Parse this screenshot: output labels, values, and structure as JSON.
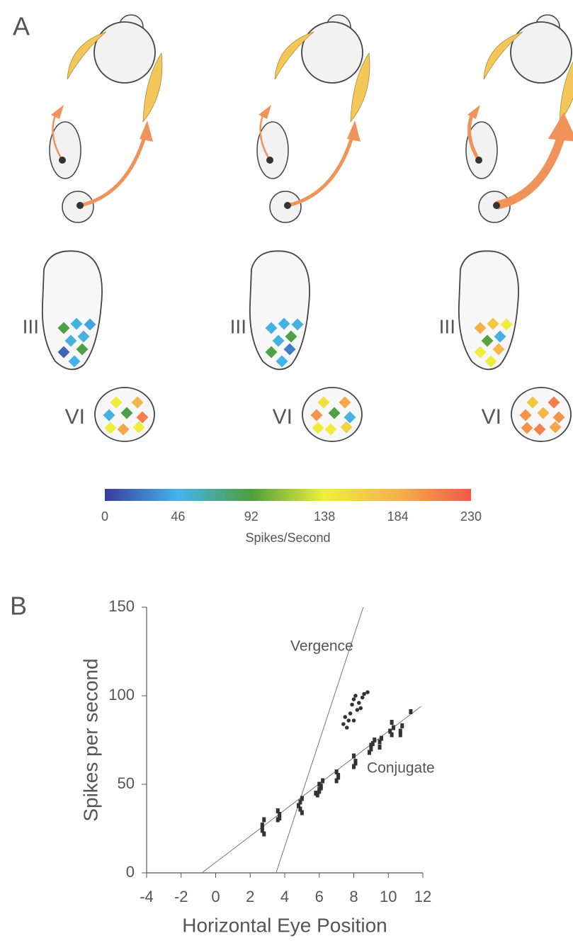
{
  "panel_labels": [
    "A",
    "B"
  ],
  "diagram": {
    "columns": [
      {
        "upper_nucleus": {
          "label": "III",
          "values": [
            90,
            50,
            40,
            50,
            50,
            15,
            90,
            45
          ]
        },
        "lower_nucleus": {
          "label": "VI",
          "values": [
            140,
            180,
            50,
            90,
            210,
            140,
            190,
            140
          ]
        }
      },
      {
        "upper_nucleus": {
          "label": "III",
          "values": [
            50,
            50,
            50,
            50,
            90,
            90,
            25,
            45
          ]
        },
        "lower_nucleus": {
          "label": "VI",
          "values": [
            150,
            190,
            200,
            90,
            50,
            140,
            140,
            160
          ]
        }
      },
      {
        "upper_nucleus": {
          "label": "III",
          "values": [
            185,
            170,
            140,
            95,
            50,
            140,
            180,
            140
          ]
        },
        "lower_nucleus": {
          "label": "VI",
          "values": [
            170,
            210,
            200,
            180,
            200,
            200,
            210,
            190
          ]
        }
      }
    ],
    "colorbar": {
      "label": "Spikes/Second",
      "lim": [
        0,
        230
      ],
      "ticks": [
        0,
        46,
        92,
        138,
        184,
        230
      ],
      "colors": [
        "#3a3c9c",
        "#45b3ee",
        "#4f9e3e",
        "#eef03a",
        "#f5b24a",
        "#f2584a"
      ]
    }
  },
  "chart_data": {
    "type": "scatter",
    "xlabel": "Horizontal Eye Position",
    "ylabel": "Spikes per second",
    "xlim": [
      -4,
      12
    ],
    "ylim": [
      0,
      150
    ],
    "xticks": [
      -4,
      -2,
      0,
      2,
      4,
      6,
      8,
      10,
      12
    ],
    "yticks": [
      0,
      50,
      100,
      150
    ],
    "series": [
      {
        "name": "Vergence",
        "color": "#333333",
        "marker": "circle",
        "x": [
          7.4,
          7.5,
          7.6,
          7.7,
          7.8,
          7.9,
          8.0,
          8.0,
          8.1,
          8.2,
          8.3,
          8.4,
          8.5,
          8.6,
          8.8
        ],
        "values": [
          84,
          88,
          82,
          86,
          90,
          95,
          98,
          86,
          100,
          92,
          96,
          93,
          99,
          101,
          102
        ]
      },
      {
        "name": "Conjugate",
        "color": "#333333",
        "marker": "square",
        "x": [
          2.7,
          2.7,
          2.8,
          2.7,
          2.8,
          3.6,
          3.7,
          3.6,
          3.7,
          4.9,
          4.9,
          5.0,
          4.8,
          5.0,
          5.9,
          6.0,
          6.1,
          6.0,
          6.2,
          5.8,
          6.0,
          6.1,
          7.0,
          7.1,
          7.0,
          7.1,
          8.0,
          8.1,
          8.0,
          8.1,
          9.0,
          9.1,
          9.2,
          8.9,
          9.0,
          9.5,
          9.6,
          9.5,
          10.2,
          10.3,
          10.2,
          10.1,
          10.7,
          10.8,
          10.7,
          11.3
        ],
        "values": [
          24,
          27,
          30,
          26,
          22,
          30,
          33,
          35,
          31,
          36,
          40,
          42,
          38,
          34,
          44,
          46,
          48,
          50,
          52,
          45,
          47,
          49,
          52,
          55,
          57,
          54,
          60,
          63,
          66,
          62,
          70,
          73,
          75,
          68,
          72,
          74,
          76,
          71,
          78,
          82,
          85,
          80,
          80,
          83,
          78,
          91
        ]
      }
    ],
    "lines": [
      {
        "x": [
          3.5,
          8.55
        ],
        "values": [
          0,
          150
        ]
      },
      {
        "x": [
          -0.8,
          11.9
        ],
        "values": [
          0,
          94
        ]
      }
    ]
  }
}
